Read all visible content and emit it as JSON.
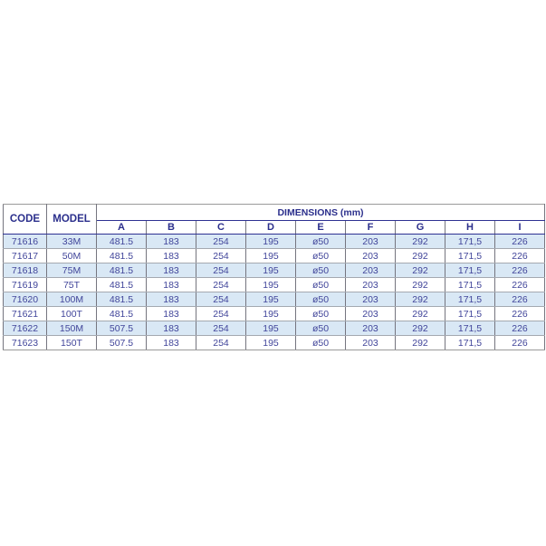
{
  "table": {
    "header": {
      "code": "CODE",
      "model": "MODEL",
      "dimensions": "DIMENSIONS (mm)",
      "dim_columns": [
        "A",
        "B",
        "C",
        "D",
        "E",
        "F",
        "G",
        "H",
        "I"
      ]
    },
    "rows": [
      {
        "code": "71616",
        "model": "33M",
        "values": [
          "481.5",
          "183",
          "254",
          "195",
          "ø50",
          "203",
          "292",
          "171,5",
          "226"
        ]
      },
      {
        "code": "71617",
        "model": "50M",
        "values": [
          "481.5",
          "183",
          "254",
          "195",
          "ø50",
          "203",
          "292",
          "171,5",
          "226"
        ]
      },
      {
        "code": "71618",
        "model": "75M",
        "values": [
          "481.5",
          "183",
          "254",
          "195",
          "ø50",
          "203",
          "292",
          "171,5",
          "226"
        ]
      },
      {
        "code": "71619",
        "model": "75T",
        "values": [
          "481.5",
          "183",
          "254",
          "195",
          "ø50",
          "203",
          "292",
          "171,5",
          "226"
        ]
      },
      {
        "code": "71620",
        "model": "100M",
        "values": [
          "481.5",
          "183",
          "254",
          "195",
          "ø50",
          "203",
          "292",
          "171,5",
          "226"
        ]
      },
      {
        "code": "71621",
        "model": "100T",
        "values": [
          "481.5",
          "183",
          "254",
          "195",
          "ø50",
          "203",
          "292",
          "171,5",
          "226"
        ]
      },
      {
        "code": "71622",
        "model": "150M",
        "values": [
          "507.5",
          "183",
          "254",
          "195",
          "ø50",
          "203",
          "292",
          "171,5",
          "226"
        ]
      },
      {
        "code": "71623",
        "model": "150T",
        "values": [
          "507.5",
          "183",
          "254",
          "195",
          "ø50",
          "203",
          "292",
          "171,5",
          "226"
        ]
      }
    ],
    "colors": {
      "header_text": "#2b2f8c",
      "data_text": "#41459a",
      "stripe_row": "#d9e8f5",
      "navy_rule": "#2e3192",
      "gray_rule": "#a4a9b0",
      "outer_border": "#9a9a9a"
    }
  }
}
